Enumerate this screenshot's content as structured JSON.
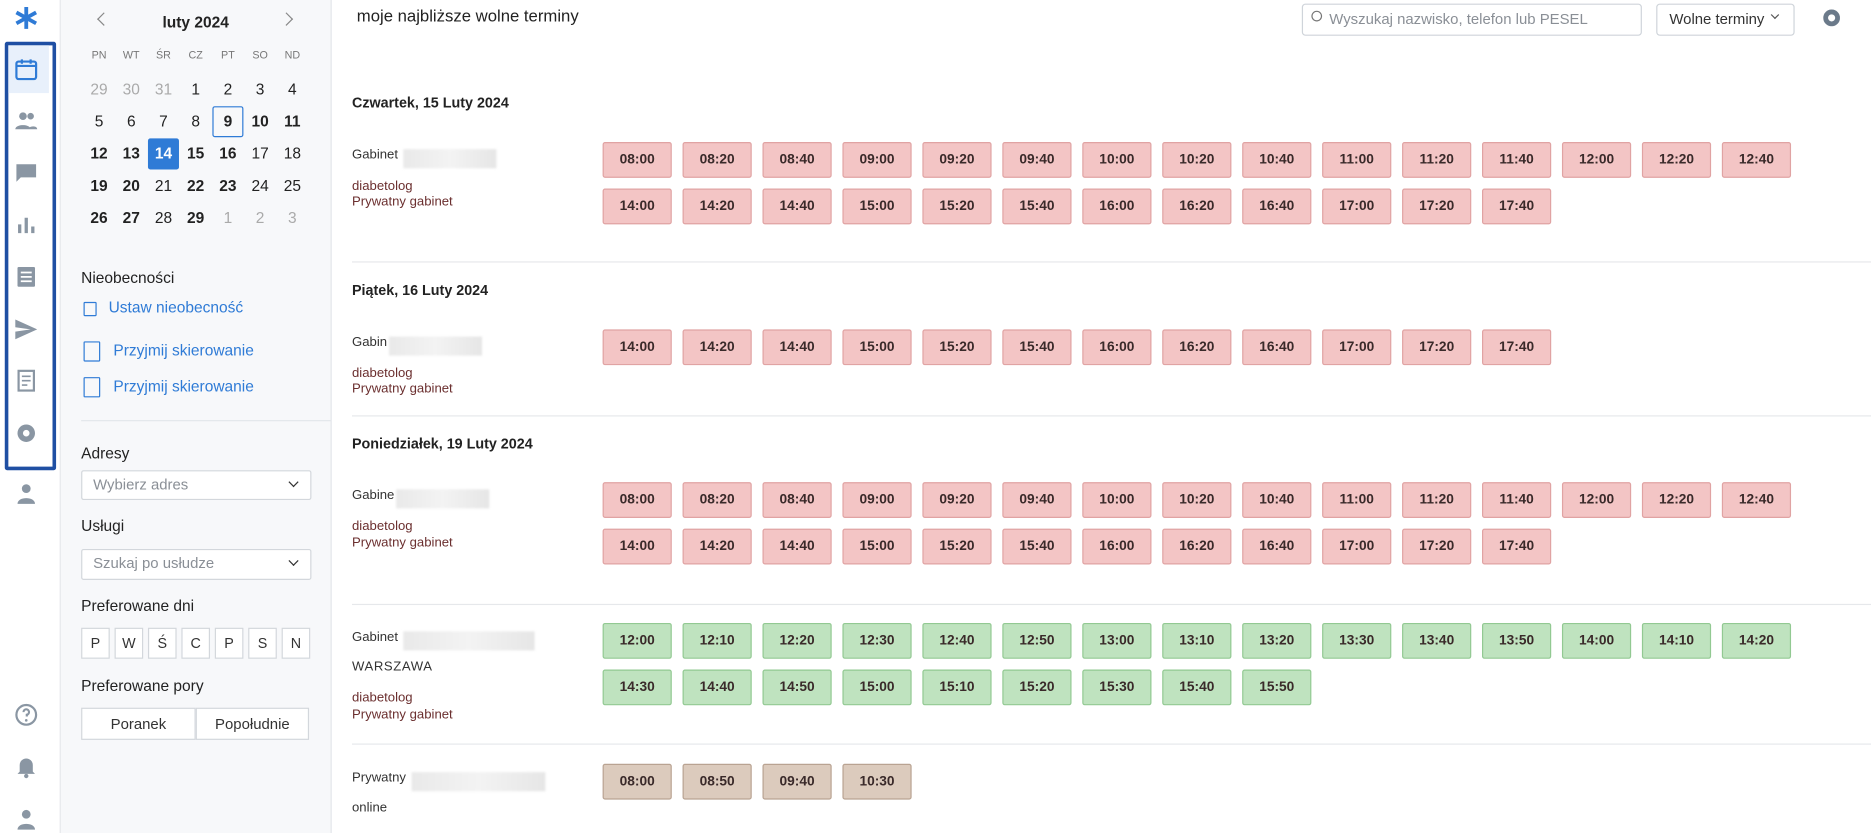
{
  "top_bar": {
    "title": "moje najbliższe wolne terminy",
    "search_placeholder": "Wyszukaj nazwisko, telefon lub PESEL",
    "view_select": "Wolne terminy"
  },
  "calendar": {
    "month": "luty 2024",
    "weekdays": [
      "PN",
      "WT",
      "ŚR",
      "CZ",
      "PT",
      "SO",
      "ND"
    ],
    "weeks": [
      [
        "29",
        "30",
        "31",
        "1",
        "2",
        "3",
        "4"
      ],
      [
        "5",
        "6",
        "7",
        "8",
        "9",
        "10",
        "11"
      ],
      [
        "12",
        "13",
        "14",
        "15",
        "16",
        "17",
        "18"
      ],
      [
        "19",
        "20",
        "21",
        "22",
        "23",
        "24",
        "25"
      ],
      [
        "26",
        "27",
        "28",
        "29",
        "1",
        "2",
        "3"
      ]
    ]
  },
  "panel": {
    "absences": {
      "heading": "Nieobecności",
      "links": [
        "Ustaw nieobecność",
        "Przyjmij skierowanie",
        "Przyjmij skierowanie"
      ]
    },
    "addresses": {
      "heading": "Adresy",
      "placeholder": "Wybierz adres"
    },
    "services": {
      "heading": "Usługi",
      "placeholder": "Szukaj po usłudze"
    },
    "days": {
      "heading": "Preferowane dni",
      "options": [
        "P",
        "W",
        "Ś",
        "C",
        "P",
        "S",
        "N"
      ]
    },
    "times": {
      "heading": "Preferowane pory",
      "options": [
        "Poranek",
        "Popołudnie"
      ]
    }
  },
  "schedule": [
    {
      "date": "Czwartek, 15 Luty 2024",
      "office": {
        "name": "Gabinet",
        "details": [
          "diabetolog",
          "Prywatny gabinet"
        ],
        "color": "#f3c5c5",
        "slots": [
          "08:00",
          "08:20",
          "08:40",
          "09:00",
          "09:20",
          "09:40",
          "10:00",
          "10:20",
          "10:40",
          "11:00",
          "11:20",
          "11:40",
          "12:00",
          "12:20",
          "12:40",
          "14:00",
          "14:20",
          "14:40",
          "15:00",
          "15:20",
          "15:40",
          "16:00",
          "16:20",
          "16:40",
          "17:00",
          "17:20",
          "17:40"
        ]
      }
    },
    {
      "date": "Piątek, 16 Luty 2024",
      "office": {
        "name": "Gabin",
        "details": [
          "diabetolog",
          "Prywatny gabinet"
        ],
        "color": "#f3c5c5",
        "slots": [
          "14:00",
          "14:20",
          "14:40",
          "15:00",
          "15:20",
          "15:40",
          "16:00",
          "16:20",
          "16:40",
          "17:00",
          "17:20",
          "17:40"
        ]
      }
    },
    {
      "date": "Poniedziałek, 19 Luty 2024",
      "office": {
        "name": "Gabine",
        "details": [
          "diabetolog",
          "Prywatny gabinet"
        ],
        "color": "#f3c5c5",
        "slots": [
          "08:00",
          "08:20",
          "08:40",
          "09:00",
          "09:20",
          "09:40",
          "10:00",
          "10:20",
          "10:40",
          "11:00",
          "11:20",
          "11:40",
          "12:00",
          "12:20",
          "12:40",
          "14:00",
          "14:20",
          "14:40",
          "15:00",
          "15:20",
          "15:40",
          "16:00",
          "16:20",
          "16:40",
          "17:00",
          "17:20",
          "17:40"
        ]
      }
    },
    {
      "office": {
        "name": "Gabinet",
        "details": [
          "WARSZAWA",
          "diabetolog",
          "Prywatny gabinet"
        ],
        "color": "#bfe3bf",
        "slots": [
          "12:00",
          "12:10",
          "12:20",
          "12:30",
          "12:40",
          "12:50",
          "13:00",
          "13:10",
          "13:20",
          "13:30",
          "13:40",
          "13:50",
          "14:00",
          "14:10",
          "14:20",
          "14:30",
          "14:40",
          "14:50",
          "15:00",
          "15:10",
          "15:20",
          "15:30",
          "15:40",
          "15:50"
        ]
      }
    },
    {
      "office": {
        "name": "Prywatny",
        "details": [
          "online"
        ],
        "color": "#dccbbd",
        "slots": [
          "08:00",
          "08:50",
          "09:40",
          "10:30"
        ]
      }
    }
  ]
}
